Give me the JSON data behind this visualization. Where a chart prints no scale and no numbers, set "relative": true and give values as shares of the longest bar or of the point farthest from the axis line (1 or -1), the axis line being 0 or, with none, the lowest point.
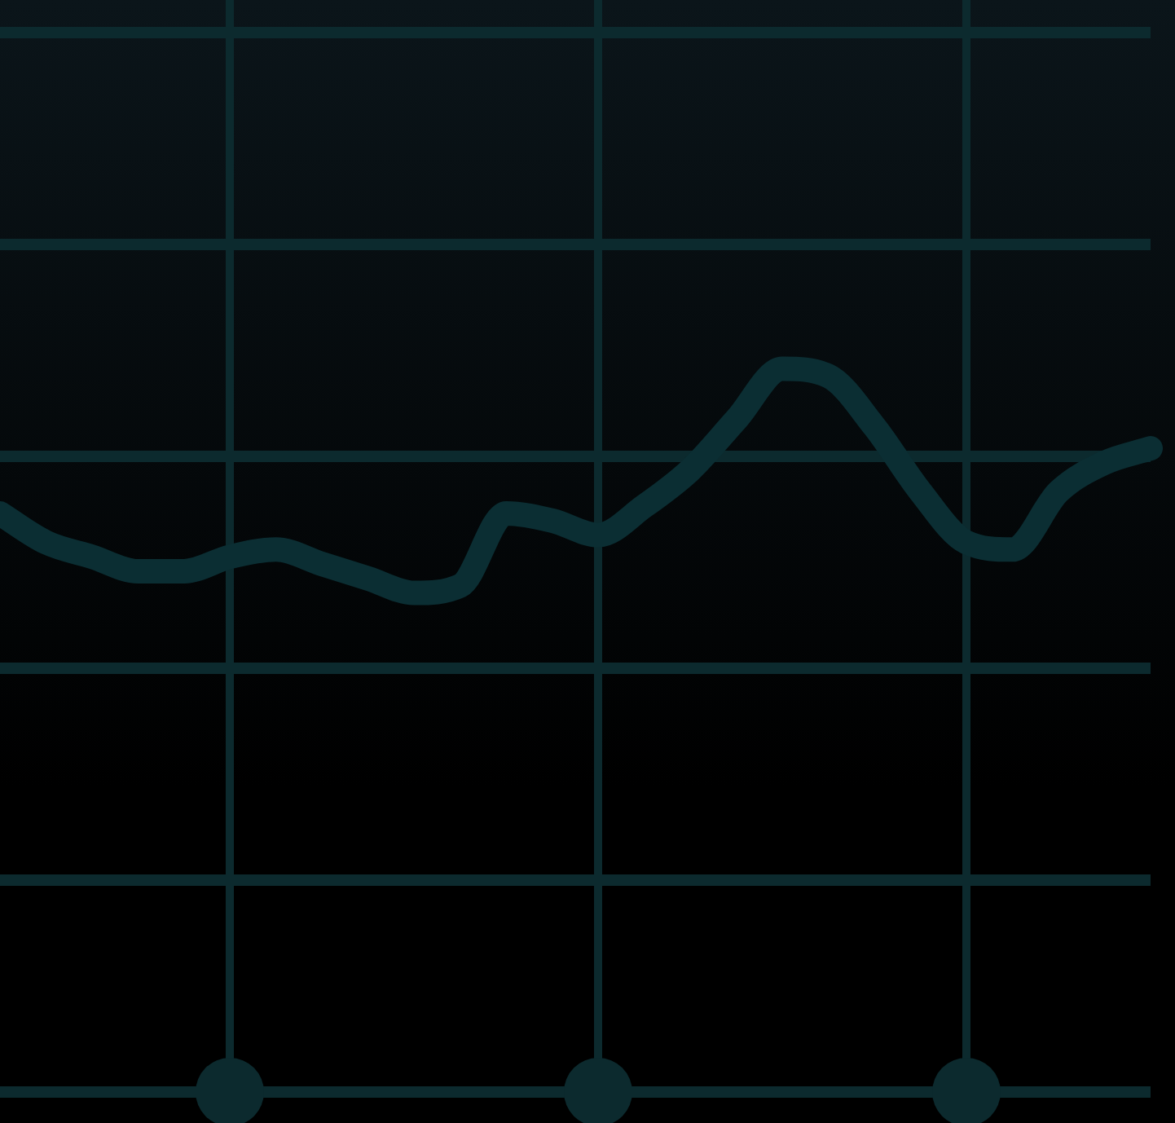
{
  "chart_data": {
    "type": "line",
    "relative": true,
    "grid": true,
    "legend": false,
    "marker": "none",
    "line_style": "solid",
    "categories": [
      null,
      null,
      null,
      null,
      null,
      null,
      null,
      null,
      null,
      null,
      null,
      null,
      null,
      null,
      null,
      null,
      null,
      null,
      null,
      null,
      null,
      null,
      null,
      null,
      null,
      null
    ],
    "series": [
      {
        "color": "#0b2e33",
        "values": [
          0.8,
          0.76,
          0.74,
          0.72,
          0.72,
          0.74,
          0.75,
          0.73,
          0.71,
          0.69,
          0.7,
          0.8,
          0.79,
          0.77,
          0.81,
          0.86,
          0.93,
          1,
          0.99,
          0.92,
          0.83,
          0.76,
          0.75,
          0.83,
          0.87,
          0.89
        ]
      }
    ]
  }
}
